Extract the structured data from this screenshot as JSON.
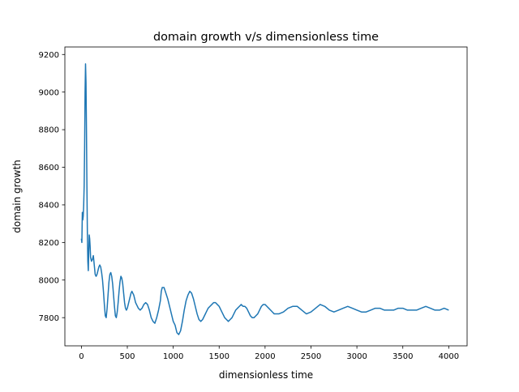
{
  "chart_data": {
    "type": "line",
    "title": "domain growth v/s dimensionless time",
    "xlabel": "dimensionless time",
    "ylabel": "domain growth",
    "xlim": [
      -180,
      4200
    ],
    "ylim": [
      7650,
      9240
    ],
    "xticks": [
      0,
      500,
      1000,
      1500,
      2000,
      2500,
      3000,
      3500,
      4000
    ],
    "yticks": [
      7800,
      8000,
      8200,
      8400,
      8600,
      8800,
      9000,
      9200
    ],
    "grid": false,
    "legend": "none",
    "line_color": "#1f77b4",
    "series": [
      {
        "x": [
          0,
          5,
          10,
          15,
          20,
          25,
          30,
          35,
          40,
          45,
          50,
          55,
          60,
          65,
          70,
          75,
          80,
          85,
          90,
          95,
          100,
          110,
          120,
          130,
          140,
          150,
          160,
          170,
          180,
          190,
          200,
          210,
          220,
          230,
          240,
          250,
          260,
          270,
          280,
          290,
          300,
          310,
          320,
          330,
          340,
          350,
          360,
          370,
          380,
          390,
          400,
          410,
          420,
          430,
          440,
          450,
          460,
          470,
          480,
          490,
          500,
          510,
          520,
          530,
          540,
          550,
          560,
          570,
          580,
          590,
          600,
          620,
          640,
          660,
          680,
          700,
          720,
          740,
          760,
          780,
          800,
          820,
          840,
          860,
          870,
          880,
          900,
          920,
          940,
          960,
          980,
          1000,
          1020,
          1040,
          1060,
          1080,
          1100,
          1120,
          1140,
          1160,
          1180,
          1200,
          1220,
          1240,
          1260,
          1280,
          1300,
          1320,
          1340,
          1360,
          1380,
          1400,
          1420,
          1440,
          1460,
          1480,
          1500,
          1520,
          1540,
          1560,
          1580,
          1600,
          1620,
          1640,
          1660,
          1680,
          1700,
          1720,
          1740,
          1760,
          1780,
          1800,
          1820,
          1840,
          1860,
          1880,
          1900,
          1920,
          1940,
          1960,
          1980,
          2000,
          2020,
          2040,
          2060,
          2080,
          2100,
          2150,
          2200,
          2250,
          2300,
          2350,
          2400,
          2450,
          2500,
          2550,
          2600,
          2650,
          2700,
          2750,
          2800,
          2850,
          2900,
          2950,
          3000,
          3050,
          3100,
          3150,
          3200,
          3250,
          3300,
          3350,
          3400,
          3450,
          3500,
          3550,
          3600,
          3650,
          3700,
          3750,
          3800,
          3850,
          3900,
          3950,
          4000
        ],
        "y": [
          8220,
          8200,
          8360,
          8320,
          8340,
          8400,
          8500,
          8700,
          9000,
          9150,
          9050,
          8800,
          8500,
          8250,
          8100,
          8050,
          8150,
          8240,
          8220,
          8180,
          8120,
          8100,
          8110,
          8130,
          8080,
          8030,
          8020,
          8030,
          8050,
          8070,
          8080,
          8070,
          8040,
          8000,
          7940,
          7870,
          7810,
          7800,
          7850,
          7920,
          7990,
          8030,
          8040,
          8020,
          7980,
          7920,
          7860,
          7810,
          7800,
          7830,
          7880,
          7940,
          7990,
          8020,
          8010,
          7980,
          7930,
          7880,
          7850,
          7840,
          7850,
          7870,
          7890,
          7910,
          7930,
          7940,
          7930,
          7920,
          7900,
          7880,
          7870,
          7850,
          7840,
          7850,
          7870,
          7880,
          7870,
          7840,
          7800,
          7780,
          7770,
          7800,
          7840,
          7890,
          7940,
          7960,
          7960,
          7930,
          7900,
          7860,
          7820,
          7780,
          7760,
          7720,
          7710,
          7730,
          7780,
          7840,
          7890,
          7920,
          7940,
          7930,
          7900,
          7860,
          7820,
          7790,
          7780,
          7790,
          7810,
          7830,
          7850,
          7860,
          7870,
          7880,
          7880,
          7870,
          7860,
          7840,
          7820,
          7800,
          7790,
          7780,
          7790,
          7800,
          7820,
          7840,
          7850,
          7860,
          7870,
          7860,
          7860,
          7850,
          7830,
          7810,
          7800,
          7800,
          7810,
          7820,
          7840,
          7860,
          7870,
          7870,
          7860,
          7850,
          7840,
          7830,
          7820,
          7820,
          7830,
          7850,
          7860,
          7860,
          7840,
          7820,
          7830,
          7850,
          7870,
          7860,
          7840,
          7830,
          7840,
          7850,
          7860,
          7850,
          7840,
          7830,
          7830,
          7840,
          7850,
          7850,
          7840,
          7840,
          7840,
          7850,
          7850,
          7840,
          7840,
          7840,
          7850,
          7860,
          7850,
          7840,
          7840,
          7850,
          7840
        ]
      }
    ]
  }
}
